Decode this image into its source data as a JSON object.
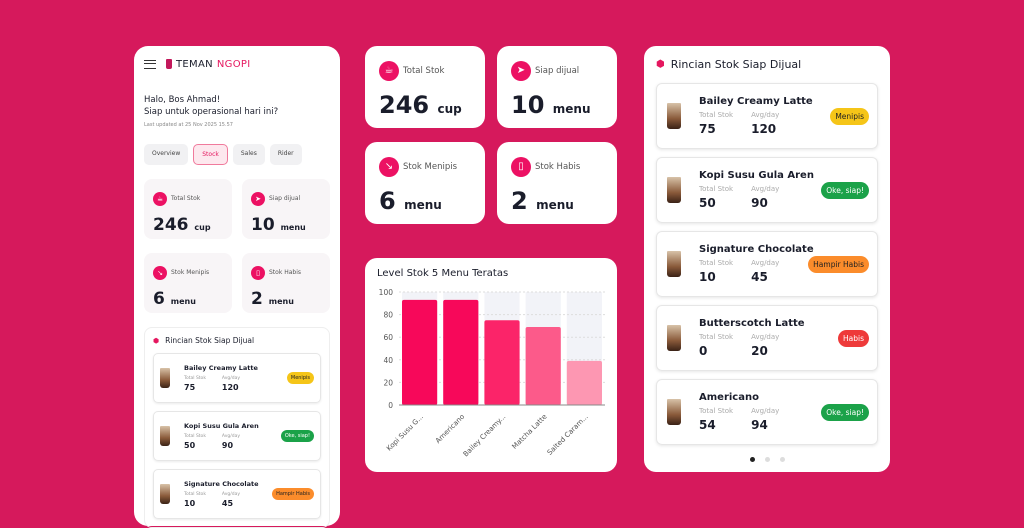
{
  "app": {
    "brand_a": "TEMAN",
    "brand_b": "NGOPI",
    "greeting_1": "Halo, Bos Ahmad!",
    "greeting_2": "Siap untuk operasional hari ini?",
    "updated": "Last updated at 25 Nov 2025 15.57"
  },
  "tabs": [
    {
      "label": "Overview"
    },
    {
      "label": "Stock"
    },
    {
      "label": "Sales"
    },
    {
      "label": "Rider"
    }
  ],
  "stats": [
    {
      "label": "Total Stok",
      "value": "246",
      "unit": "cup",
      "icon": "coffee-cup-icon"
    },
    {
      "label": "Siap dijual",
      "value": "10",
      "unit": "menu",
      "icon": "send-icon"
    },
    {
      "label": "Stok Menipis",
      "value": "6",
      "unit": "menu",
      "icon": "arrow-down-right-icon"
    },
    {
      "label": "Stok Habis",
      "value": "2",
      "unit": "menu",
      "icon": "phone-icon"
    }
  ],
  "list": {
    "title": "Rincian Stok Siap Dijual",
    "k1": "Total Stok",
    "k2": "Avg/day",
    "items": [
      {
        "name": "Bailey Creamy Latte",
        "stok": "75",
        "avg": "120",
        "status": "Menipis",
        "color": "#f5c518"
      },
      {
        "name": "Kopi Susu Gula Aren",
        "stok": "50",
        "avg": "90",
        "status": "Oke, siap!",
        "color": "#1ba249"
      },
      {
        "name": "Signature Chocolate",
        "stok": "10",
        "avg": "45",
        "status": "Hampir Habis",
        "color": "#fb8c2b"
      },
      {
        "name": "Butterscotch Latte",
        "stok": "0",
        "avg": "20",
        "status": "Habis",
        "color": "#ee3a3a"
      },
      {
        "name": "Americano",
        "stok": "54",
        "avg": "94",
        "status": "Oke, siap!",
        "color": "#1ba249"
      }
    ]
  },
  "chart_data": {
    "type": "bar",
    "title": "Level Stok 5 Menu Teratas",
    "categories": [
      "Kopi Susu G...",
      "Americano",
      "Bailey Creamy...",
      "Matcha Latte",
      "Salted Caram..."
    ],
    "values": [
      93,
      93,
      75,
      69,
      39
    ],
    "ylim": [
      0,
      100
    ],
    "yticks": [
      0,
      20,
      40,
      60,
      80,
      100
    ],
    "colors": [
      "#f7085a",
      "#f7085a",
      "#fb2469",
      "#fc5a8a",
      "#fd97b2"
    ],
    "grid": true
  }
}
